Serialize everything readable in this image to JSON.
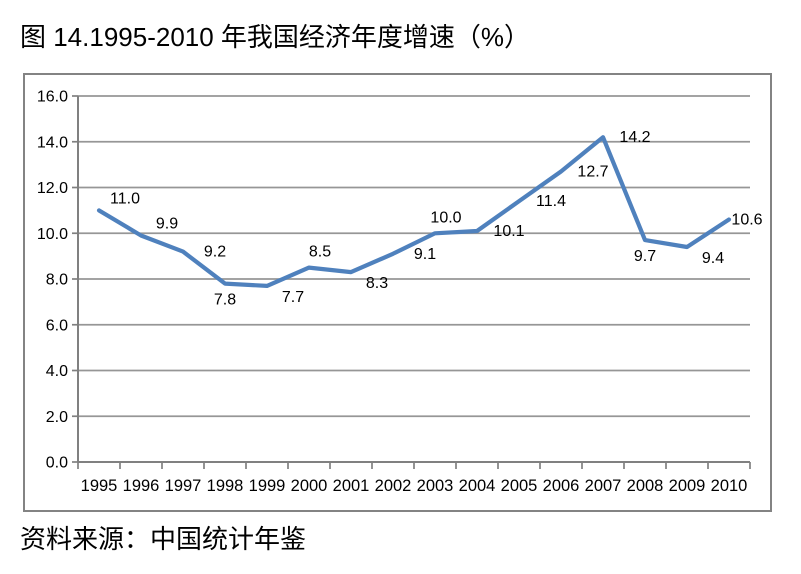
{
  "page": {
    "title": "图 14.1995-2010 年我国经济年度增速（%）",
    "source_note": "资料来源：中国统计年鉴"
  },
  "chart_data": {
    "type": "line",
    "title": "图 14.1995-2010 年我国经济年度增速（%）",
    "categories": [
      "1995",
      "1996",
      "1997",
      "1998",
      "1999",
      "2000",
      "2001",
      "2002",
      "2003",
      "2004",
      "2005",
      "2006",
      "2007",
      "2008",
      "2009",
      "2010"
    ],
    "values": [
      11.0,
      9.9,
      9.2,
      7.8,
      7.7,
      8.5,
      8.3,
      9.1,
      10.0,
      10.1,
      11.4,
      12.7,
      14.2,
      9.7,
      9.4,
      10.6
    ],
    "data_labels": [
      "11.0",
      "9.9",
      "9.2",
      "7.8",
      "7.7",
      "8.5",
      "8.3",
      "9.1",
      "10.0",
      "10.1",
      "11.4",
      "12.7",
      "14.2",
      "9.7",
      "9.4",
      "10.6"
    ],
    "label_positions": [
      "above-right",
      "above-right",
      "right",
      "below",
      "below-right",
      "above",
      "below-right",
      "right",
      "above",
      "right",
      "right",
      "right",
      "right",
      "below",
      "below-right",
      "right-close"
    ],
    "ylim": [
      0,
      16
    ],
    "ytick_step": 2,
    "ytick_labels": [
      "0.0",
      "2.0",
      "4.0",
      "6.0",
      "8.0",
      "10.0",
      "12.0",
      "14.0",
      "16.0"
    ],
    "xlabel": "",
    "ylabel": "",
    "grid": true,
    "legend": "none",
    "colors": {
      "line": "#4F81BD",
      "gridline": "#969696",
      "axis": "#808080",
      "frame_border": "#838383",
      "text": "#000000"
    },
    "source_note": "资料来源：中国统计年鉴"
  }
}
